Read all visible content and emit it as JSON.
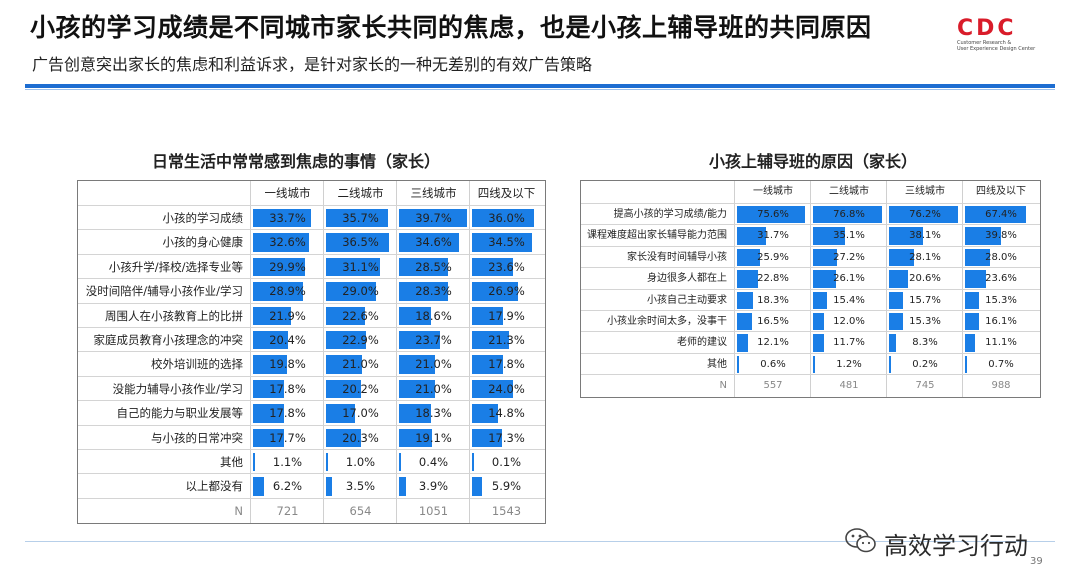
{
  "slide": {
    "title": "小孩的学习成绩是不同城市家长共同的焦虑，也是小孩上辅导班的共同原因",
    "subtitle": "广告创意突出家长的焦虑和利益诉求，是针对家长的一种无差别的有效广告策略",
    "logo_mark": "CDC",
    "logo_line1": "Customer Research &",
    "logo_line2": "User Experience Design Center",
    "page_number": "39",
    "watermark": "高效学习行动",
    "colors": {
      "bar": "#1a7ee6",
      "accent_rule": "#1d6dd1",
      "logo": "#d91c2a"
    }
  },
  "chart_data": [
    {
      "type": "table",
      "title": "日常生活中常常感到焦虑的事情（家长）",
      "columns": [
        "一线城市",
        "二线城市",
        "三线城市",
        "四线及以下"
      ],
      "rows": [
        {
          "label": "小孩的学习成绩",
          "values": [
            33.7,
            35.7,
            39.7,
            36.0
          ],
          "text": [
            "33.7%",
            "35.7%",
            "39.7%",
            "36.0%"
          ]
        },
        {
          "label": "小孩的身心健康",
          "values": [
            32.6,
            36.5,
            34.6,
            34.5
          ],
          "text": [
            "32.6%",
            "36.5%",
            "34.6%",
            "34.5%"
          ]
        },
        {
          "label": "小孩升学/择校/选择专业等",
          "values": [
            29.9,
            31.1,
            28.5,
            23.6
          ],
          "text": [
            "29.9%",
            "31.1%",
            "28.5%",
            "23.6%"
          ]
        },
        {
          "label": "没时间陪伴/辅导小孩作业/学习",
          "values": [
            28.9,
            29.0,
            28.3,
            26.9
          ],
          "text": [
            "28.9%",
            "29.0%",
            "28.3%",
            "26.9%"
          ]
        },
        {
          "label": "周围人在小孩教育上的比拼",
          "values": [
            21.9,
            22.6,
            18.6,
            17.9
          ],
          "text": [
            "21.9%",
            "22.6%",
            "18.6%",
            "17.9%"
          ]
        },
        {
          "label": "家庭成员教育小孩理念的冲突",
          "values": [
            20.4,
            22.9,
            23.7,
            21.3
          ],
          "text": [
            "20.4%",
            "22.9%",
            "23.7%",
            "21.3%"
          ]
        },
        {
          "label": "校外培训班的选择",
          "values": [
            19.8,
            21.0,
            21.0,
            17.8
          ],
          "text": [
            "19.8%",
            "21.0%",
            "21.0%",
            "17.8%"
          ]
        },
        {
          "label": "没能力辅导小孩作业/学习",
          "values": [
            17.8,
            20.2,
            21.0,
            24.0
          ],
          "text": [
            "17.8%",
            "20.2%",
            "21.0%",
            "24.0%"
          ]
        },
        {
          "label": "自己的能力与职业发展等",
          "values": [
            17.8,
            17.0,
            18.3,
            14.8
          ],
          "text": [
            "17.8%",
            "17.0%",
            "18.3%",
            "14.8%"
          ]
        },
        {
          "label": "与小孩的日常冲突",
          "values": [
            17.7,
            20.3,
            19.1,
            17.3
          ],
          "text": [
            "17.7%",
            "20.3%",
            "19.1%",
            "17.3%"
          ]
        },
        {
          "label": "其他",
          "values": [
            1.1,
            1.0,
            0.4,
            0.1
          ],
          "text": [
            "1.1%",
            "1.0%",
            "0.4%",
            "0.1%"
          ]
        },
        {
          "label": "以上都没有",
          "values": [
            6.2,
            3.5,
            3.9,
            5.9
          ],
          "text": [
            "6.2%",
            "3.5%",
            "3.9%",
            "5.9%"
          ]
        }
      ],
      "n_row": {
        "label": "N",
        "values": [
          "721",
          "654",
          "1051",
          "1543"
        ]
      },
      "scale_max": 40
    },
    {
      "type": "table",
      "title": "小孩上辅导班的原因（家长）",
      "columns": [
        "一线城市",
        "二线城市",
        "三线城市",
        "四线及以下"
      ],
      "rows": [
        {
          "label": "提高小孩的学习成绩/能力",
          "values": [
            75.6,
            76.8,
            76.2,
            67.4
          ],
          "text": [
            "75.6%",
            "76.8%",
            "76.2%",
            "67.4%"
          ]
        },
        {
          "label": "课程难度超出家长辅导能力范围",
          "values": [
            31.7,
            35.1,
            38.1,
            39.8
          ],
          "text": [
            "31.7%",
            "35.1%",
            "38.1%",
            "39.8%"
          ]
        },
        {
          "label": "家长没有时间辅导小孩",
          "values": [
            25.9,
            27.2,
            28.1,
            28.0
          ],
          "text": [
            "25.9%",
            "27.2%",
            "28.1%",
            "28.0%"
          ]
        },
        {
          "label": "身边很多人都在上",
          "values": [
            22.8,
            26.1,
            20.6,
            23.6
          ],
          "text": [
            "22.8%",
            "26.1%",
            "20.6%",
            "23.6%"
          ]
        },
        {
          "label": "小孩自己主动要求",
          "values": [
            18.3,
            15.4,
            15.7,
            15.3
          ],
          "text": [
            "18.3%",
            "15.4%",
            "15.7%",
            "15.3%"
          ]
        },
        {
          "label": "小孩业余时间太多，没事干",
          "values": [
            16.5,
            12.0,
            15.3,
            16.1
          ],
          "text": [
            "16.5%",
            "12.0%",
            "15.3%",
            "16.1%"
          ]
        },
        {
          "label": "老师的建议",
          "values": [
            12.1,
            11.7,
            8.3,
            11.1
          ],
          "text": [
            "12.1%",
            "11.7%",
            "8.3%",
            "11.1%"
          ]
        },
        {
          "label": "其他",
          "values": [
            0.6,
            1.2,
            0.2,
            0.7
          ],
          "text": [
            "0.6%",
            "1.2%",
            "0.2%",
            "0.7%"
          ]
        }
      ],
      "n_row": {
        "label": "N",
        "values": [
          "557",
          "481",
          "745",
          "988"
        ]
      },
      "scale_max": 80
    }
  ]
}
